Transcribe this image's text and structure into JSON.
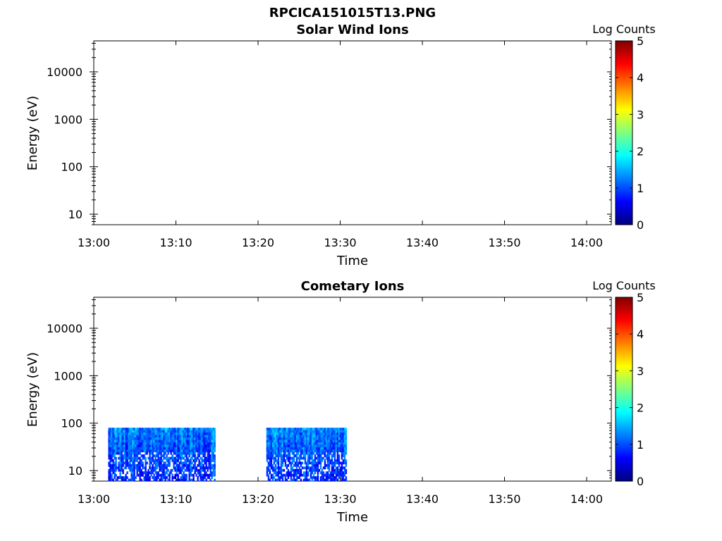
{
  "figure": {
    "title": "RPCICA151015T13.PNG"
  },
  "chart_data": [
    {
      "type": "heatmap",
      "title": "Solar Wind Ions",
      "xlabel": "Time",
      "ylabel": "Energy (eV)",
      "x_ticks": [
        "13:00",
        "13:10",
        "13:20",
        "13:30",
        "13:40",
        "13:50",
        "14:00"
      ],
      "xlim": [
        "13:00",
        "14:03"
      ],
      "y_scale": "log",
      "y_ticks": [
        10,
        100,
        1000,
        10000
      ],
      "y_tick_labels": [
        "10",
        "100",
        "1000",
        "10000"
      ],
      "ylim": [
        6,
        45000
      ],
      "colorbar": {
        "label": "Log Counts",
        "range": [
          0,
          5
        ],
        "ticks": [
          "0",
          "1",
          "2",
          "3",
          "4",
          "5"
        ],
        "colormap": "jet"
      },
      "data_blocks": []
    },
    {
      "type": "heatmap",
      "title": "Cometary Ions",
      "xlabel": "Time",
      "ylabel": "Energy (eV)",
      "x_ticks": [
        "13:00",
        "13:10",
        "13:20",
        "13:30",
        "13:40",
        "13:50",
        "14:00"
      ],
      "xlim": [
        "13:00",
        "14:03"
      ],
      "y_scale": "log",
      "y_ticks": [
        10,
        100,
        1000,
        10000
      ],
      "y_tick_labels": [
        "10",
        "100",
        "1000",
        "10000"
      ],
      "ylim": [
        6,
        45000
      ],
      "colorbar": {
        "label": "Log Counts",
        "range": [
          0,
          5
        ],
        "ticks": [
          "0",
          "1",
          "2",
          "3",
          "4",
          "5"
        ],
        "colormap": "jet"
      },
      "data_blocks": [
        {
          "t_start": "13:01:45",
          "t_end": "13:14:45",
          "e_min": 6,
          "e_max": 80,
          "log_counts_range": [
            0.3,
            1.8
          ]
        },
        {
          "t_start": "13:21:00",
          "t_end": "13:30:45",
          "e_min": 6,
          "e_max": 80,
          "log_counts_range": [
            0.3,
            1.8
          ]
        }
      ]
    }
  ]
}
